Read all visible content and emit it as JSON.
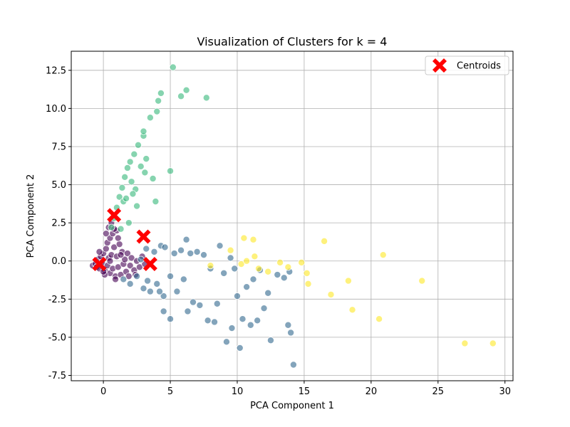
{
  "chart_data": {
    "type": "scatter",
    "title": "Visualization of Clusters for k = 4",
    "xlabel": "PCA Component 1",
    "ylabel": "PCA Component 2",
    "xlim": [
      -2.4,
      30.6
    ],
    "ylim": [
      -7.85,
      13.75
    ],
    "xticks": [
      0,
      5,
      10,
      15,
      20,
      25,
      30
    ],
    "yticks": [
      -7.5,
      -5.0,
      -2.5,
      0.0,
      2.5,
      5.0,
      7.5,
      10.0,
      12.5
    ],
    "grid": true,
    "legend": {
      "placement": "top-right",
      "entries": [
        "Centroids"
      ]
    },
    "colors": {
      "cluster_0": "#440154",
      "cluster_1": "#31688e",
      "cluster_2": "#35b779",
      "cluster_3": "#fde725",
      "centroid": "#ff0000"
    },
    "series": [
      {
        "cluster": 0,
        "points": [
          [
            -0.8,
            -0.3
          ],
          [
            -0.6,
            -0.2
          ],
          [
            -0.5,
            -0.4
          ],
          [
            -0.4,
            0.1
          ],
          [
            -0.3,
            -0.5
          ],
          [
            -0.2,
            0.3
          ],
          [
            -0.1,
            -0.1
          ],
          [
            0.0,
            0.5
          ],
          [
            0.1,
            -0.6
          ],
          [
            0.2,
            0.8
          ],
          [
            0.3,
            -0.3
          ],
          [
            0.3,
            1.2
          ],
          [
            0.4,
            0.2
          ],
          [
            0.5,
            -0.8
          ],
          [
            0.5,
            1.5
          ],
          [
            0.6,
            0.4
          ],
          [
            0.7,
            -0.5
          ],
          [
            0.7,
            1.8
          ],
          [
            0.8,
            0.9
          ],
          [
            0.9,
            -1.0
          ],
          [
            1.0,
            0.3
          ],
          [
            1.0,
            2.0
          ],
          [
            1.1,
            -0.4
          ],
          [
            1.2,
            1.1
          ],
          [
            1.3,
            -0.9
          ],
          [
            1.4,
            0.6
          ],
          [
            1.5,
            -0.2
          ],
          [
            1.6,
            0.1
          ],
          [
            1.7,
            -0.7
          ],
          [
            1.8,
            0.5
          ],
          [
            2.0,
            -0.3
          ],
          [
            2.1,
            0.2
          ],
          [
            2.3,
            -0.6
          ],
          [
            2.5,
            0.0
          ],
          [
            2.7,
            -0.4
          ],
          [
            2.9,
            0.3
          ],
          [
            3.1,
            -0.2
          ],
          [
            0.2,
            1.8
          ],
          [
            0.4,
            2.2
          ],
          [
            0.6,
            2.5
          ],
          [
            0.8,
            2.1
          ],
          [
            0.1,
            -0.9
          ],
          [
            -0.3,
            0.6
          ],
          [
            0.9,
            -1.2
          ],
          [
            1.9,
            -1.0
          ],
          [
            0.5,
            0.0
          ],
          [
            1.3,
            0.4
          ],
          [
            2.4,
            -0.9
          ],
          [
            0.0,
            -0.7
          ],
          [
            1.1,
            1.5
          ]
        ]
      },
      {
        "cluster": 1,
        "points": [
          [
            1.5,
            -1.2
          ],
          [
            2.0,
            -1.5
          ],
          [
            2.5,
            -1.0
          ],
          [
            3.0,
            -1.8
          ],
          [
            3.2,
            0.8
          ],
          [
            3.5,
            -2.0
          ],
          [
            3.8,
            0.6
          ],
          [
            4.0,
            -1.5
          ],
          [
            4.3,
            1.0
          ],
          [
            4.5,
            -2.3
          ],
          [
            4.6,
            0.9
          ],
          [
            4.5,
            -3.3
          ],
          [
            5.0,
            -3.8
          ],
          [
            5.0,
            -1.0
          ],
          [
            5.3,
            0.5
          ],
          [
            5.5,
            -2.0
          ],
          [
            5.8,
            0.7
          ],
          [
            6.0,
            -1.2
          ],
          [
            6.2,
            1.4
          ],
          [
            6.3,
            -3.3
          ],
          [
            6.5,
            0.5
          ],
          [
            6.7,
            -2.7
          ],
          [
            7.0,
            0.6
          ],
          [
            7.2,
            -2.9
          ],
          [
            7.5,
            0.4
          ],
          [
            7.8,
            -3.9
          ],
          [
            8.0,
            -0.5
          ],
          [
            8.3,
            -4.0
          ],
          [
            8.5,
            -2.8
          ],
          [
            8.7,
            1.0
          ],
          [
            9.0,
            -0.8
          ],
          [
            9.2,
            -5.3
          ],
          [
            9.5,
            0.2
          ],
          [
            9.6,
            -4.4
          ],
          [
            9.8,
            -0.5
          ],
          [
            10.0,
            -2.3
          ],
          [
            10.2,
            -5.7
          ],
          [
            10.4,
            -3.8
          ],
          [
            10.7,
            -1.7
          ],
          [
            11.0,
            -4.2
          ],
          [
            11.2,
            -1.2
          ],
          [
            11.5,
            -3.9
          ],
          [
            11.7,
            -0.6
          ],
          [
            12.0,
            -3.1
          ],
          [
            12.3,
            -2.1
          ],
          [
            12.5,
            -5.2
          ],
          [
            13.0,
            -0.9
          ],
          [
            13.5,
            -1.1
          ],
          [
            13.8,
            -4.2
          ],
          [
            14.0,
            -4.7
          ],
          [
            14.2,
            -6.8
          ],
          [
            13.9,
            -0.7
          ],
          [
            4.2,
            -2.0
          ],
          [
            2.8,
            0.1
          ],
          [
            3.3,
            -1.3
          ]
        ]
      },
      {
        "cluster": 2,
        "points": [
          [
            0.6,
            2.2
          ],
          [
            0.8,
            2.8
          ],
          [
            1.0,
            3.5
          ],
          [
            1.2,
            4.2
          ],
          [
            1.4,
            4.8
          ],
          [
            1.5,
            3.9
          ],
          [
            1.6,
            5.5
          ],
          [
            1.7,
            4.1
          ],
          [
            1.8,
            6.1
          ],
          [
            2.0,
            6.5
          ],
          [
            2.1,
            5.2
          ],
          [
            2.3,
            7.0
          ],
          [
            2.4,
            4.7
          ],
          [
            2.6,
            7.6
          ],
          [
            2.8,
            6.2
          ],
          [
            3.0,
            8.2
          ],
          [
            3.1,
            5.8
          ],
          [
            3.2,
            6.7
          ],
          [
            3.0,
            8.5
          ],
          [
            3.5,
            9.4
          ],
          [
            3.7,
            5.4
          ],
          [
            3.9,
            3.9
          ],
          [
            4.0,
            9.8
          ],
          [
            4.1,
            10.5
          ],
          [
            4.3,
            11.0
          ],
          [
            5.0,
            5.9
          ],
          [
            5.2,
            12.7
          ],
          [
            5.8,
            10.8
          ],
          [
            6.2,
            11.2
          ],
          [
            7.7,
            10.7
          ],
          [
            2.5,
            3.6
          ],
          [
            1.9,
            2.5
          ],
          [
            2.2,
            4.4
          ],
          [
            1.3,
            2.1
          ]
        ]
      },
      {
        "cluster": 3,
        "points": [
          [
            8.0,
            -0.3
          ],
          [
            9.5,
            0.7
          ],
          [
            10.3,
            -0.2
          ],
          [
            10.7,
            0.0
          ],
          [
            10.5,
            1.5
          ],
          [
            11.2,
            1.4
          ],
          [
            11.3,
            0.3
          ],
          [
            11.6,
            -0.5
          ],
          [
            12.3,
            -0.7
          ],
          [
            13.2,
            -0.1
          ],
          [
            13.8,
            -0.4
          ],
          [
            14.8,
            -0.1
          ],
          [
            15.2,
            -0.8
          ],
          [
            15.3,
            -1.5
          ],
          [
            16.5,
            1.3
          ],
          [
            17.0,
            -2.2
          ],
          [
            18.3,
            -1.3
          ],
          [
            18.6,
            -3.2
          ],
          [
            20.6,
            -3.8
          ],
          [
            20.9,
            0.4
          ],
          [
            23.8,
            -1.3
          ],
          [
            27.0,
            -5.4
          ],
          [
            29.1,
            -5.4
          ]
        ]
      }
    ],
    "centroids": [
      [
        -0.3,
        -0.2
      ],
      [
        0.8,
        3.0
      ],
      [
        3.0,
        1.6
      ],
      [
        3.5,
        -0.2
      ]
    ]
  }
}
